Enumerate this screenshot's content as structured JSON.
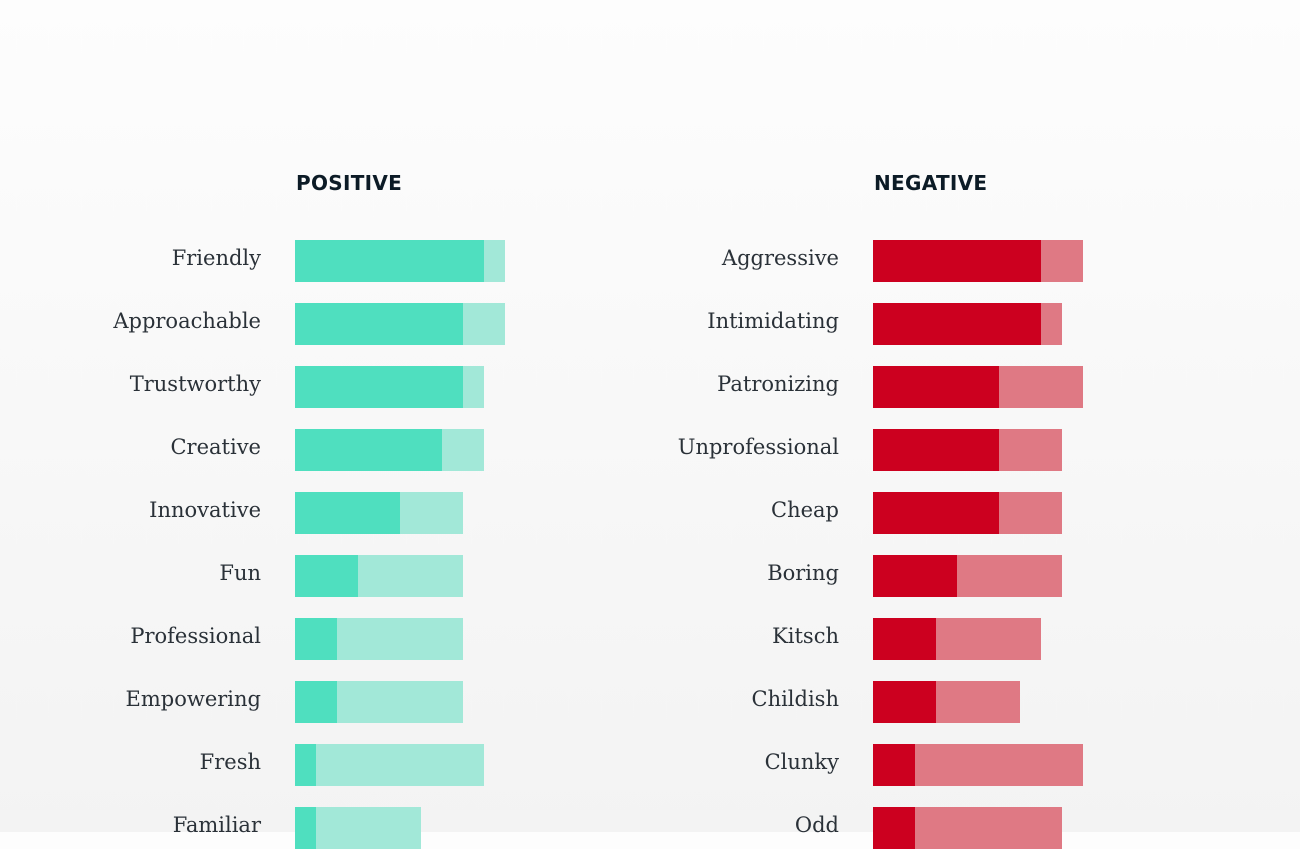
{
  "chart_data": [
    {
      "type": "bar",
      "orientation": "horizontal",
      "stacked": true,
      "title": "POSITIVE",
      "categories": [
        "Friendly",
        "Approachable",
        "Trustworthy",
        "Creative",
        "Innovative",
        "Fun",
        "Professional",
        "Empowering",
        "Fresh",
        "Familiar"
      ],
      "series": [
        {
          "values": [
            9,
            8,
            8,
            7,
            5,
            3,
            2,
            2,
            1,
            1
          ]
        },
        {
          "values": [
            1,
            2,
            1,
            2,
            3,
            5,
            6,
            6,
            8,
            5
          ]
        }
      ],
      "colors": [
        "#4fdfbf",
        "#a2e8d8"
      ],
      "xlim": [
        0,
        10
      ],
      "grid": false
    },
    {
      "type": "bar",
      "orientation": "horizontal",
      "stacked": true,
      "title": "NEGATIVE",
      "categories": [
        "Aggressive",
        "Intimidating",
        "Patronizing",
        "Unprofessional",
        "Cheap",
        "Boring",
        "Kitsch",
        "Childish",
        "Clunky",
        "Odd"
      ],
      "series": [
        {
          "values": [
            8,
            8,
            6,
            6,
            6,
            4,
            3,
            3,
            2,
            2
          ]
        },
        {
          "values": [
            2,
            1,
            4,
            3,
            3,
            5,
            5,
            4,
            8,
            7
          ]
        }
      ],
      "colors": [
        "#cc001f",
        "#df7984"
      ],
      "xlim": [
        0,
        10
      ],
      "grid": false
    }
  ]
}
